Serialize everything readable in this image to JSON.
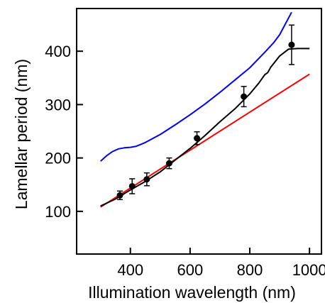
{
  "chart_data": {
    "type": "line",
    "title": "",
    "xlabel": "Illumination wavelength (nm)",
    "ylabel": "Lamellar period (nm)",
    "xlim": [
      220,
      1040
    ],
    "ylim": [
      20,
      480
    ],
    "xticks": [
      400,
      600,
      800,
      1000
    ],
    "yticks": [
      100,
      200,
      300,
      400
    ],
    "grid": false,
    "legend": "none",
    "series": [
      {
        "color": "#0000ff",
        "style": "line",
        "points": [
          [
            300,
            194
          ],
          [
            320,
            204
          ],
          [
            340,
            212
          ],
          [
            360,
            217
          ],
          [
            380,
            219
          ],
          [
            400,
            220
          ],
          [
            420,
            222
          ],
          [
            450,
            229
          ],
          [
            500,
            244
          ],
          [
            550,
            262
          ],
          [
            600,
            281
          ],
          [
            650,
            301
          ],
          [
            700,
            323
          ],
          [
            750,
            346
          ],
          [
            800,
            369
          ],
          [
            850,
            398
          ],
          [
            880,
            416
          ],
          [
            900,
            431
          ],
          [
            940,
            473
          ]
        ]
      },
      {
        "color": "#ff0000",
        "style": "line",
        "points": [
          [
            300,
            108
          ],
          [
            1000,
            357
          ]
        ]
      },
      {
        "color": "#000000",
        "style": "line",
        "points": [
          [
            300,
            110
          ],
          [
            350,
            123
          ],
          [
            400,
            140
          ],
          [
            450,
            156
          ],
          [
            500,
            174
          ],
          [
            550,
            196
          ],
          [
            600,
            218
          ],
          [
            650,
            242
          ],
          [
            700,
            268
          ],
          [
            750,
            292
          ],
          [
            800,
            320
          ],
          [
            830,
            340
          ],
          [
            850,
            356
          ],
          [
            860,
            360
          ],
          [
            870,
            370
          ],
          [
            900,
            391
          ],
          [
            930,
            404
          ],
          [
            960,
            405
          ],
          [
            1000,
            405
          ]
        ]
      },
      {
        "color": "#000000",
        "style": "points-with-errorbars",
        "points": [
          {
            "x": 365,
            "y": 130,
            "err": 8
          },
          {
            "x": 406,
            "y": 147,
            "err": 14
          },
          {
            "x": 455,
            "y": 160,
            "err": 12
          },
          {
            "x": 530,
            "y": 190,
            "err": 10
          },
          {
            "x": 623,
            "y": 237,
            "err": 12
          },
          {
            "x": 780,
            "y": 315,
            "err": 19
          },
          {
            "x": 940,
            "y": 412,
            "err": 37
          }
        ]
      }
    ]
  }
}
